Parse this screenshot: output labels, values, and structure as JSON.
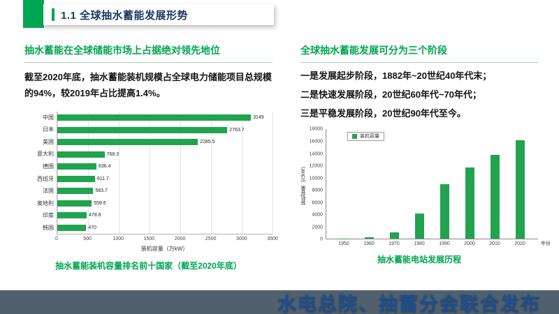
{
  "header": {
    "title": "1.1 全球抽水蓄能发展形势"
  },
  "left": {
    "heading": "抽水蓄能在全球储能市场上占据绝对领先地位",
    "paragraph": "截至2020年底，抽水蓄能装机规模占全球电力储能项目总规模的94%，较2019年占比提高1.4%。",
    "caption": "抽水蓄能装机容量排名前十国家（截至2020年底）"
  },
  "right": {
    "heading": "全球抽水蓄能发展可分为三个阶段",
    "lines": [
      "一是发展起步阶段，1882年~20世纪40年代末；",
      "二是快速发展阶段，20世纪60年代~70年代；",
      "三是平稳发展阶段，20世纪90年代至今。"
    ],
    "caption": "抽水蓄能电站发展历程"
  },
  "footer": {
    "text": "水电总院、抽蓄分会联合发布"
  },
  "colors": {
    "accent_green": "#00A651",
    "bar_green": "#22A34F",
    "title_navy": "#1F3864",
    "footer_bg": "#50606C",
    "footer_text": "#1D4E8F"
  },
  "chart_data": [
    {
      "type": "bar",
      "orientation": "horizontal",
      "title": "抽水蓄能装机容量排名前十国家（截至2020年底）",
      "categories": [
        "中国",
        "日本",
        "美国",
        "意大利",
        "德国",
        "西班牙",
        "法国",
        "奥地利",
        "印度",
        "韩国"
      ],
      "values": [
        3149,
        2763.7,
        2285.5,
        768.3,
        636.4,
        611.7,
        583.7,
        559.6,
        478.6,
        470
      ],
      "xlabel": "装机容量（万kW）",
      "ylabel": "",
      "xticks": [
        0,
        500,
        1000,
        1500,
        2000,
        2500,
        3000,
        3500
      ],
      "xlim": [
        0,
        3500
      ],
      "grid": true,
      "legend_position": "none"
    },
    {
      "type": "bar",
      "orientation": "vertical",
      "title": "抽水蓄能电站发展历程",
      "categories": [
        "1950",
        "1960",
        "1970",
        "1980",
        "1990",
        "2000",
        "2010",
        "2020"
      ],
      "values": [
        100,
        300,
        1100,
        4200,
        9000,
        11800,
        13800,
        16200
      ],
      "xlabel": "年份",
      "ylabel": "装机容量（万kW）",
      "yticks": [
        0,
        2000,
        4000,
        6000,
        8000,
        10000,
        12000,
        14000,
        16000,
        18000
      ],
      "ylim": [
        0,
        18000
      ],
      "grid": false,
      "legend": [
        "装机容量"
      ],
      "legend_position": "top-left"
    }
  ]
}
